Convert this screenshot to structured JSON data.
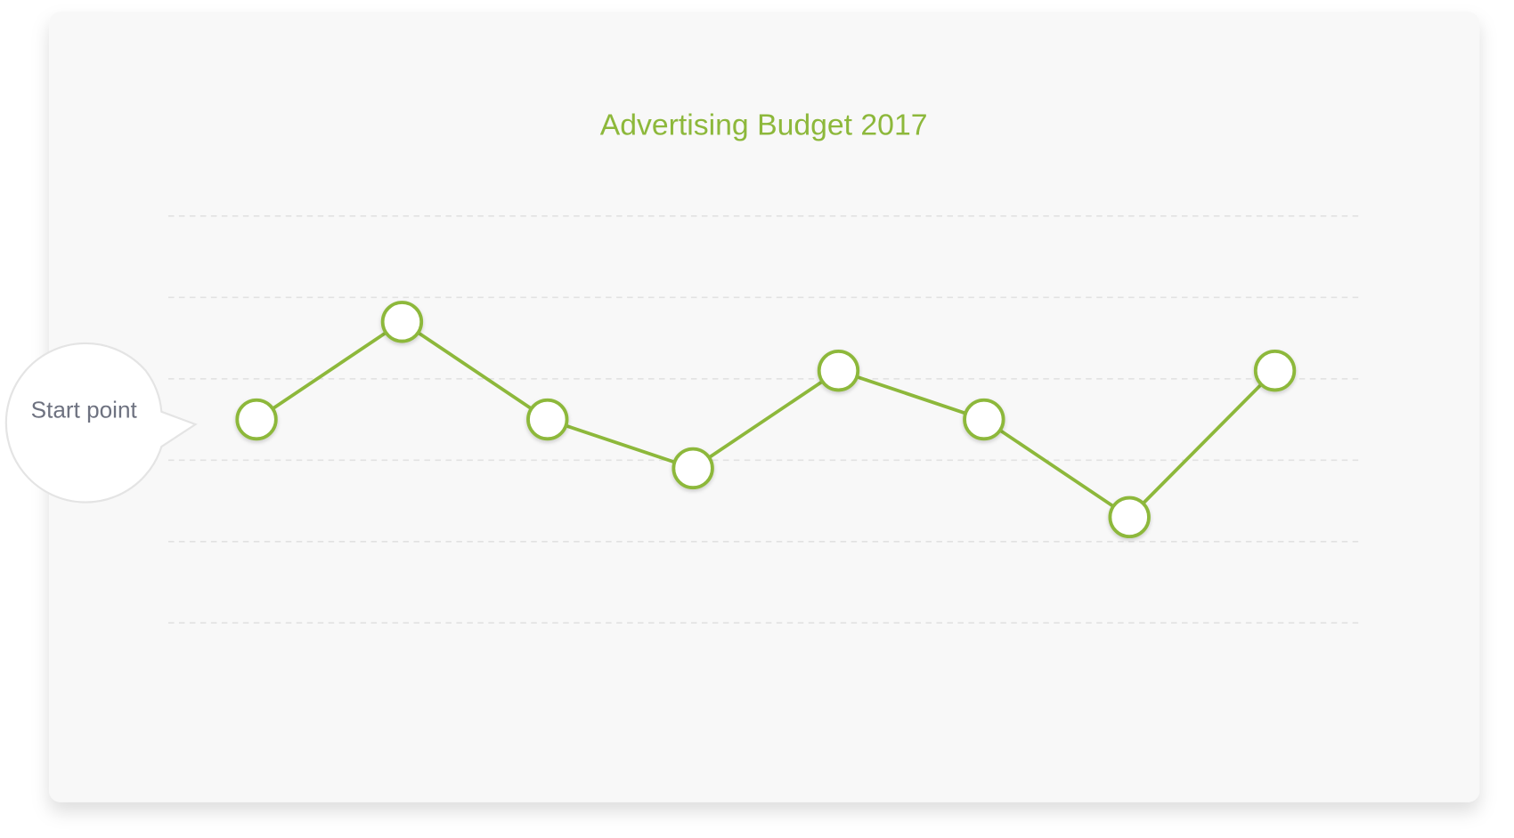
{
  "chart_data": {
    "type": "line",
    "title": "Advertising Budget 2017",
    "series": [
      {
        "color": "#8db83b",
        "values": [
          2.5,
          3.7,
          2.5,
          1.9,
          3.1,
          2.5,
          1.3,
          3.1
        ]
      }
    ],
    "ylim": [
      0,
      5
    ],
    "yticks": [
      0,
      1,
      2,
      3,
      4,
      5
    ],
    "grid": true,
    "annotation": "Start point"
  }
}
